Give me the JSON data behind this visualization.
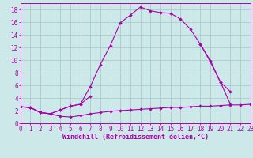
{
  "background_color": "#cce8e8",
  "grid_color": "#aacccc",
  "line_color": "#aa00aa",
  "marker": "D",
  "marker_size": 2.2,
  "xlim": [
    0,
    23
  ],
  "ylim": [
    0,
    19
  ],
  "xticks": [
    0,
    1,
    2,
    3,
    4,
    5,
    6,
    7,
    8,
    9,
    10,
    11,
    12,
    13,
    14,
    15,
    16,
    17,
    18,
    19,
    20,
    21,
    22,
    23
  ],
  "yticks": [
    0,
    2,
    4,
    6,
    8,
    10,
    12,
    14,
    16,
    18
  ],
  "xlabel": "Windchill (Refroidissement éolien,°C)",
  "tick_fontsize": 5.5,
  "label_fontsize": 6.0,
  "line1_x": [
    0,
    1,
    2,
    3,
    4,
    5,
    6,
    7,
    8,
    9,
    10,
    11,
    12,
    13,
    14,
    15,
    16,
    17,
    18,
    19,
    20,
    21
  ],
  "line1_y": [
    2.6,
    2.5,
    1.7,
    1.5,
    2.1,
    2.7,
    3.0,
    5.8,
    9.3,
    12.3,
    15.9,
    17.1,
    18.4,
    17.8,
    17.5,
    17.4,
    16.5,
    14.9,
    12.5,
    9.7,
    6.5,
    3.0
  ],
  "line2_xa": [
    0,
    1,
    2,
    3,
    4,
    5,
    6,
    7
  ],
  "line2_ya": [
    2.6,
    2.5,
    1.7,
    1.5,
    2.1,
    2.7,
    3.0,
    4.3
  ],
  "line2_xb": [
    18,
    19,
    20,
    21,
    22,
    23
  ],
  "line2_yb": [
    12.5,
    9.9,
    6.5,
    5.0,
    null,
    3.0
  ],
  "line3_x": [
    0,
    1,
    2,
    3,
    4,
    5,
    6,
    7,
    8,
    9,
    10,
    11,
    12,
    13,
    14,
    15,
    16,
    17,
    18,
    19,
    20,
    21,
    22,
    23
  ],
  "line3_y": [
    2.6,
    2.5,
    1.7,
    1.5,
    1.1,
    1.0,
    1.2,
    1.5,
    1.7,
    1.9,
    2.0,
    2.1,
    2.2,
    2.3,
    2.4,
    2.5,
    2.5,
    2.6,
    2.7,
    2.7,
    2.8,
    2.9,
    2.9,
    3.0
  ]
}
